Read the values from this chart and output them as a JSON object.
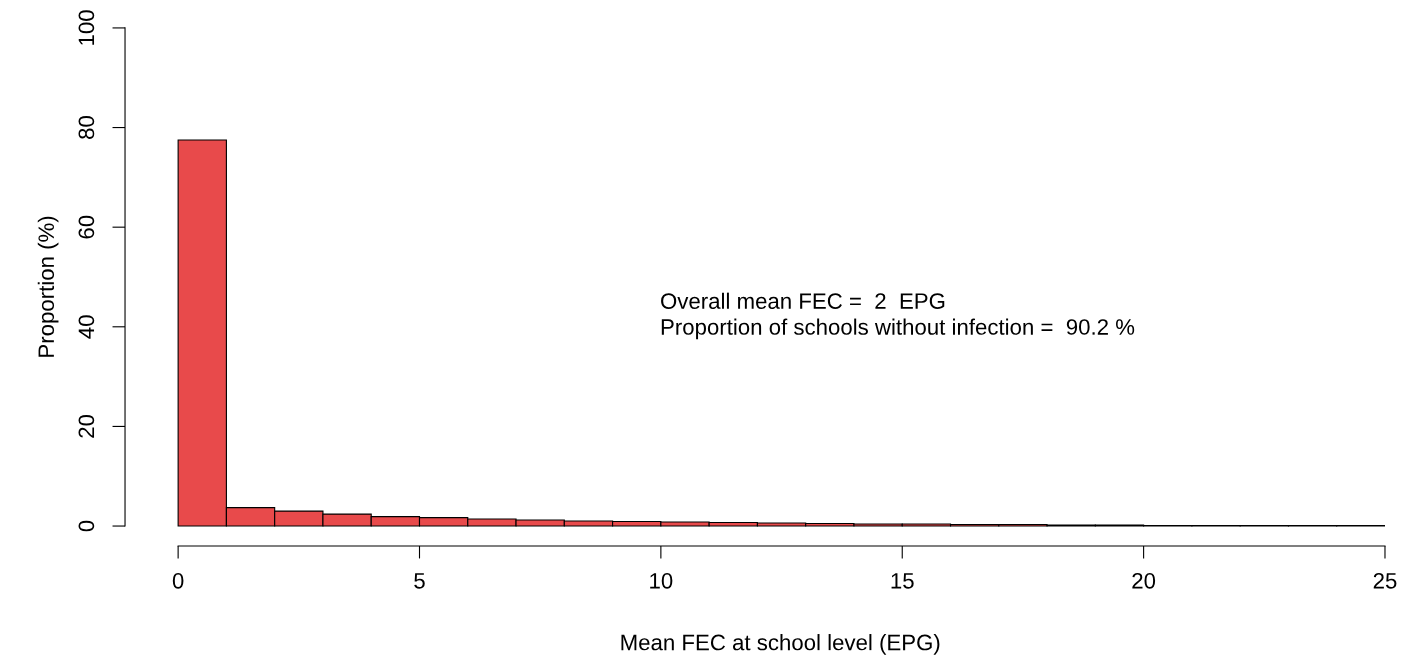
{
  "chart_data": {
    "type": "histogram",
    "xlabel": "Mean FEC at school level (EPG)",
    "ylabel": "Proportion (%)",
    "bins": [
      0,
      1,
      2,
      3,
      4,
      5,
      6,
      7,
      8,
      9,
      10,
      11,
      12,
      13,
      14,
      15,
      16,
      17,
      18,
      19,
      20,
      21,
      22,
      23,
      24,
      25
    ],
    "values": [
      77.5,
      3.7,
      3.0,
      2.4,
      1.9,
      1.7,
      1.4,
      1.2,
      1.0,
      0.9,
      0.8,
      0.7,
      0.6,
      0.5,
      0.4,
      0.4,
      0.3,
      0.3,
      0.2,
      0.2,
      0.1,
      0.1,
      0.1,
      0.1,
      0.1
    ],
    "color": "#e84a4b",
    "xlim": [
      -1.1,
      25
    ],
    "xticks": [
      0,
      5,
      10,
      15,
      20,
      25
    ],
    "ylim": [
      -4,
      100
    ],
    "yticks": [
      0,
      20,
      40,
      60,
      80,
      100
    ],
    "grid": false,
    "annotations": [
      "Overall mean FEC =  2  EPG",
      "Proportion of schools without infection =  90.2 %"
    ]
  }
}
